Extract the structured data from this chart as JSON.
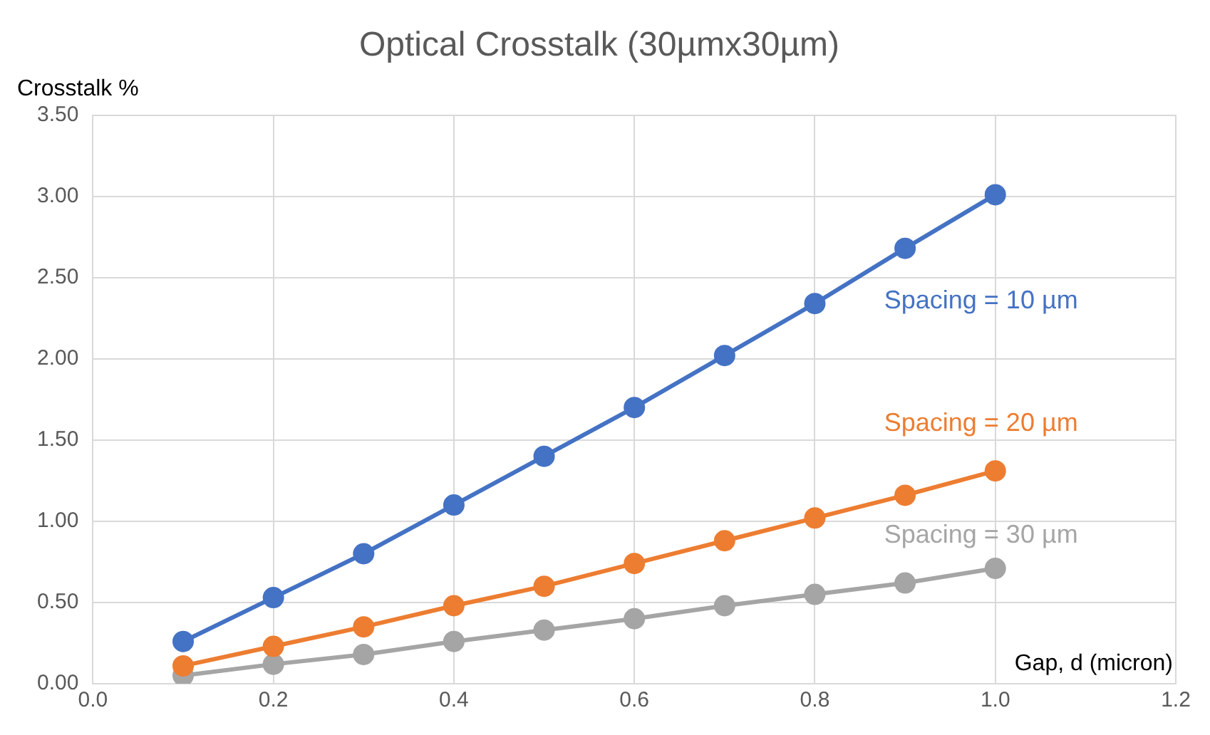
{
  "chart_data": {
    "type": "line",
    "title": "Optical Crosstalk (30µmx30µm)",
    "xlabel": "Gap, d (micron)",
    "ylabel": "Crosstalk %",
    "x": [
      0.1,
      0.2,
      0.3,
      0.4,
      0.5,
      0.6,
      0.7,
      0.8,
      0.9,
      1.0
    ],
    "series": [
      {
        "name": "Spacing = 10 µm",
        "color": "#4472c4",
        "values": [
          0.26,
          0.53,
          0.8,
          1.1,
          1.4,
          1.7,
          2.02,
          2.34,
          2.68,
          3.01
        ]
      },
      {
        "name": "Spacing = 20 µm",
        "color": "#ed7d31",
        "values": [
          0.11,
          0.23,
          0.35,
          0.48,
          0.6,
          0.74,
          0.88,
          1.02,
          1.16,
          1.31
        ]
      },
      {
        "name": "Spacing = 30 µm",
        "color": "#a5a5a5",
        "values": [
          0.05,
          0.12,
          0.18,
          0.26,
          0.33,
          0.4,
          0.48,
          0.55,
          0.62,
          0.71
        ]
      }
    ],
    "xlim": [
      0,
      1.2
    ],
    "xticks": [
      {
        "value": 0,
        "label": "0.0"
      },
      {
        "value": 0.2,
        "label": "0.2"
      },
      {
        "value": 0.4,
        "label": "0.4"
      },
      {
        "value": 0.6,
        "label": "0.6"
      },
      {
        "value": 0.8,
        "label": "0.8"
      },
      {
        "value": 1.0,
        "label": "1.0"
      },
      {
        "value": 1.2,
        "label": "1.2"
      }
    ],
    "ylim": [
      0,
      3.5
    ],
    "yticks": [
      {
        "value": 0,
        "label": "0.00"
      },
      {
        "value": 0.5,
        "label": "0.50"
      },
      {
        "value": 1,
        "label": "1.00"
      },
      {
        "value": 1.5,
        "label": "1.50"
      },
      {
        "value": 2,
        "label": "2.00"
      },
      {
        "value": 2.5,
        "label": "2.50"
      },
      {
        "value": 3,
        "label": "3.00"
      },
      {
        "value": 3.5,
        "label": "3.50"
      }
    ],
    "grid": true,
    "legend": false,
    "marker": "circle",
    "line_style": "solid"
  }
}
